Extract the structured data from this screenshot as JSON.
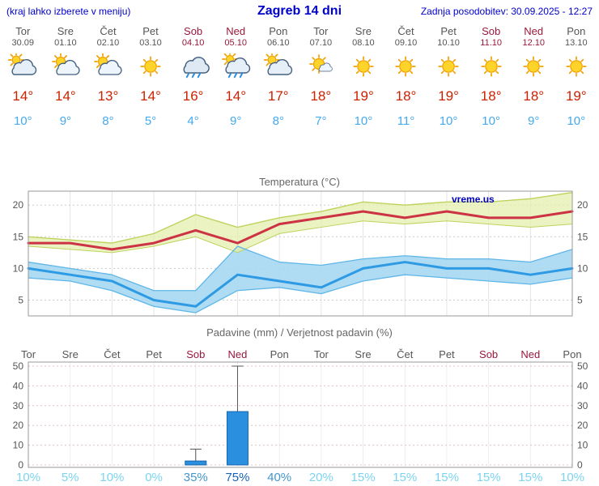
{
  "header": {
    "note": "(kraj lahko izberete v meniju)",
    "title": "Zagreb 14 dni",
    "updated": "Zadnja posodobitev: 30.09.2025 - 12:27"
  },
  "colors": {
    "link_blue": "#0000cc",
    "weekday_text": "#555555",
    "weekend_text": "#99173c",
    "tmax_text": "#cc2200",
    "tmin_text": "#45a9ee",
    "tmax_line": "#cc3344",
    "tmin_line": "#2e9ae4",
    "tmax_band": "#e4efae",
    "tmax_band_edge": "#bdd35e",
    "tmin_band": "#a6d7f2",
    "tmin_band_edge": "#5fb6e8",
    "bar_fill": "#2b8fe0",
    "bar_edge": "#1766ad",
    "pop_low": "#7cd4ee",
    "pop_mid": "#4596cc",
    "pop_high": "#1a62b8"
  },
  "days": [
    {
      "name": "Tor",
      "date": "30.09",
      "weekend": false,
      "icon": "cloudy-sun",
      "tmax": 14,
      "tmin": 10
    },
    {
      "name": "Sre",
      "date": "01.10",
      "weekend": false,
      "icon": "partly-cloudy",
      "tmax": 14,
      "tmin": 9
    },
    {
      "name": "Čet",
      "date": "02.10",
      "weekend": false,
      "icon": "partly-cloudy",
      "tmax": 13,
      "tmin": 8
    },
    {
      "name": "Pet",
      "date": "03.10",
      "weekend": false,
      "icon": "sunny",
      "tmax": 14,
      "tmin": 5
    },
    {
      "name": "Sob",
      "date": "04.10",
      "weekend": true,
      "icon": "rain",
      "tmax": 16,
      "tmin": 4
    },
    {
      "name": "Ned",
      "date": "05.10",
      "weekend": true,
      "icon": "sun-rain",
      "tmax": 14,
      "tmin": 9
    },
    {
      "name": "Pon",
      "date": "06.10",
      "weekend": false,
      "icon": "cloudy-sun",
      "tmax": 17,
      "tmin": 8
    },
    {
      "name": "Tor",
      "date": "07.10",
      "weekend": false,
      "icon": "mostly-sunny",
      "tmax": 18,
      "tmin": 7
    },
    {
      "name": "Sre",
      "date": "08.10",
      "weekend": false,
      "icon": "sunny",
      "tmax": 19,
      "tmin": 10
    },
    {
      "name": "Čet",
      "date": "09.10",
      "weekend": false,
      "icon": "sunny",
      "tmax": 18,
      "tmin": 11
    },
    {
      "name": "Pet",
      "date": "10.10",
      "weekend": false,
      "icon": "sunny",
      "tmax": 19,
      "tmin": 10
    },
    {
      "name": "Sob",
      "date": "11.10",
      "weekend": true,
      "icon": "sunny",
      "tmax": 18,
      "tmin": 10
    },
    {
      "name": "Ned",
      "date": "12.10",
      "weekend": true,
      "icon": "sunny",
      "tmax": 18,
      "tmin": 9
    },
    {
      "name": "Pon",
      "date": "13.10",
      "weekend": false,
      "icon": "sunny",
      "tmax": 19,
      "tmin": 10
    }
  ],
  "chart_data": [
    {
      "type": "line",
      "title": "Temperatura (°C)",
      "watermark": "vreme.us",
      "categories": [
        "Tor",
        "Sre",
        "Čet",
        "Pet",
        "Sob",
        "Ned",
        "Pon",
        "Tor",
        "Sre",
        "Čet",
        "Pet",
        "Sob",
        "Ned",
        "Pon"
      ],
      "ylim": [
        2.5,
        22.2
      ],
      "yticks": [
        5,
        10,
        15,
        20
      ],
      "grid": true,
      "series": [
        {
          "name": "tmax",
          "values": [
            14,
            14,
            13,
            14,
            16,
            14,
            17,
            18,
            19,
            18,
            19,
            18,
            18,
            19
          ]
        },
        {
          "name": "tmax_band_upper",
          "values": [
            15,
            14.5,
            14,
            15.5,
            18.5,
            16.5,
            18,
            19,
            20.5,
            20,
            20.5,
            20.5,
            21,
            22
          ]
        },
        {
          "name": "tmax_band_lower",
          "values": [
            13.5,
            13,
            12.5,
            13.5,
            15,
            12.5,
            15.5,
            16.5,
            17.5,
            17,
            17.5,
            17,
            16.5,
            17
          ]
        },
        {
          "name": "tmin",
          "values": [
            10,
            9,
            8,
            5,
            4,
            9,
            8,
            7,
            10,
            11,
            10,
            10,
            9,
            10
          ]
        },
        {
          "name": "tmin_band_upper",
          "values": [
            11,
            10,
            9,
            6.5,
            6.5,
            13.5,
            11,
            10.5,
            11.5,
            12,
            11.5,
            11.5,
            11,
            13
          ]
        },
        {
          "name": "tmin_band_lower",
          "values": [
            8.5,
            8,
            6.5,
            4,
            3,
            6.5,
            7,
            6,
            8,
            9,
            8.5,
            8,
            7.5,
            8.5
          ]
        }
      ]
    },
    {
      "type": "bar",
      "title": "Padavine (mm) / Verjetnost padavin (%)",
      "categories": [
        "Tor",
        "Sre",
        "Čet",
        "Pet",
        "Sob",
        "Ned",
        "Pon",
        "Tor",
        "Sre",
        "Čet",
        "Pet",
        "Sob",
        "Ned",
        "Pon"
      ],
      "values": [
        0,
        0,
        0,
        0,
        2,
        27,
        0,
        0,
        0,
        0,
        0,
        0,
        0,
        0
      ],
      "whisker_max": [
        0,
        0,
        0,
        0,
        8,
        50,
        0,
        0,
        0,
        0,
        0,
        0,
        0,
        0
      ],
      "pop": [
        10,
        5,
        10,
        0,
        35,
        75,
        40,
        20,
        15,
        15,
        15,
        15,
        15,
        10
      ],
      "ylim": [
        0,
        52
      ],
      "yticks": [
        0,
        10,
        20,
        30,
        40,
        50
      ],
      "grid": true
    }
  ]
}
